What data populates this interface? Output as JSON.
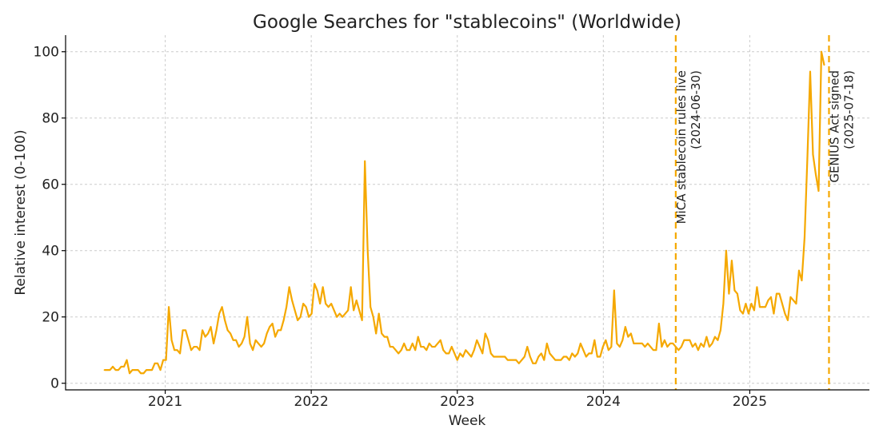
{
  "chart_data": {
    "type": "line",
    "title": "Google Searches for \"stablecoins\" (Worldwide)",
    "xlabel": "Week",
    "ylabel": "Relative interest (0-100)",
    "xlim": [
      "2020-04-27",
      "2025-10-27"
    ],
    "ylim": [
      -2,
      105
    ],
    "yticks": [
      0,
      20,
      40,
      60,
      80,
      100
    ],
    "xticks": [
      {
        "date": "2021-01-01",
        "label": "2021"
      },
      {
        "date": "2022-01-01",
        "label": "2022"
      },
      {
        "date": "2023-01-01",
        "label": "2023"
      },
      {
        "date": "2024-01-01",
        "label": "2024"
      },
      {
        "date": "2025-01-01",
        "label": "2025"
      }
    ],
    "grid": true,
    "color": "#F5A800",
    "annotations": [
      {
        "date": "2024-06-30",
        "line1": "MiCA stablecoin rules live",
        "line2": "(2024-06-30)"
      },
      {
        "date": "2025-07-18",
        "line1": "GENIUS Act signed",
        "line2": "(2025-07-18)"
      }
    ],
    "series": [
      {
        "start_date": "2020-08-02",
        "step_days": 7,
        "values": [
          4,
          4,
          4,
          5,
          4,
          4,
          5,
          5,
          7,
          3,
          4,
          4,
          4,
          3,
          3,
          4,
          4,
          4,
          6,
          6,
          4,
          7,
          7,
          23,
          13,
          10,
          10,
          9,
          16,
          16,
          13,
          10,
          11,
          11,
          10,
          16,
          14,
          15,
          17,
          12,
          16,
          21,
          23,
          19,
          16,
          15,
          13,
          13,
          11,
          12,
          14,
          20,
          12,
          10,
          13,
          12,
          11,
          12,
          15,
          17,
          18,
          14,
          16,
          16,
          19,
          23,
          29,
          25,
          22,
          19,
          20,
          24,
          23,
          20,
          21,
          30,
          28,
          24,
          29,
          24,
          23,
          24,
          22,
          20,
          21,
          20,
          21,
          22,
          29,
          22,
          25,
          22,
          19,
          67,
          40,
          23,
          20,
          15,
          21,
          15,
          14,
          14,
          11,
          11,
          10,
          9,
          10,
          12,
          10,
          10,
          12,
          10,
          14,
          11,
          11,
          10,
          12,
          11,
          11,
          12,
          13,
          10,
          9,
          9,
          11,
          9,
          7,
          9,
          8,
          10,
          9,
          8,
          10,
          13,
          11,
          9,
          15,
          13,
          9,
          8,
          8,
          8,
          8,
          8,
          7,
          7,
          7,
          7,
          6,
          7,
          8,
          11,
          8,
          6,
          6,
          8,
          9,
          7,
          12,
          9,
          8,
          7,
          7,
          7,
          8,
          8,
          7,
          9,
          8,
          9,
          12,
          10,
          8,
          9,
          9,
          13,
          8,
          8,
          11,
          13,
          10,
          11,
          28,
          12,
          11,
          13,
          17,
          14,
          15,
          12,
          12,
          12,
          12,
          11,
          12,
          11,
          10,
          10,
          18,
          11,
          13,
          11,
          12,
          12,
          11,
          10,
          11,
          13,
          13,
          13,
          11,
          12,
          10,
          12,
          11,
          14,
          11,
          12,
          14,
          13,
          16,
          24,
          40,
          27,
          37,
          28,
          27,
          22,
          21,
          24,
          21,
          24,
          22,
          29,
          23,
          23,
          23,
          25,
          26,
          21,
          27,
          27,
          24,
          21,
          19,
          26,
          25,
          24,
          34,
          31,
          44,
          68,
          94,
          69,
          63,
          58,
          100,
          96
        ]
      }
    ]
  }
}
